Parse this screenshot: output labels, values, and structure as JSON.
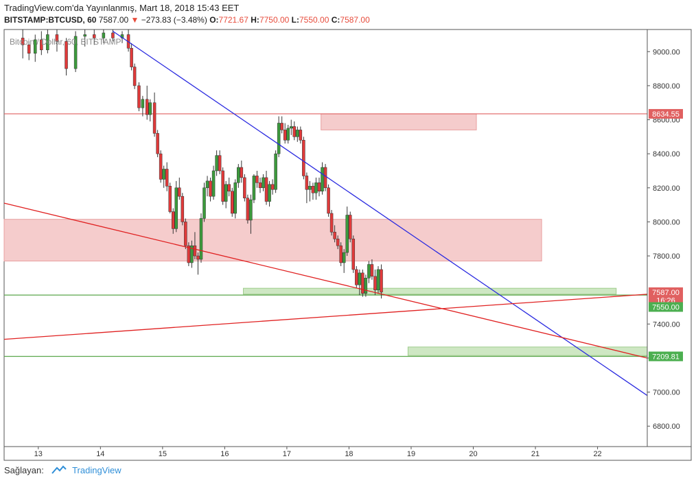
{
  "header": {
    "published": "TradingView.com'da Yayınlanmış, Mart 18, 2018 15:43 EET",
    "symbol": "BITSTAMP:BTCUSD, 60",
    "last": "7587.00",
    "arrow": "▼",
    "change": "−273.83 (−3.48%)",
    "o_label": "O:",
    "o_val": "7721.67",
    "h_label": "H:",
    "h_val": "7750.00",
    "l_label": "L:",
    "l_val": "7550.00",
    "c_label": "C:",
    "c_val": "7587.00"
  },
  "watermark": "Bitcoin / Dollar, 60, BITSTAMP",
  "footer": {
    "label": "Sağlayan:",
    "brand": "TradingView"
  },
  "colors": {
    "up": "#3c9a3c",
    "down": "#e03a3a",
    "zone_red": "#f3c3c3",
    "zone_green": "#c6e3b8",
    "blue_line": "#2a2ae0",
    "red_line": "#e02020",
    "green_line": "#5aa64a"
  },
  "chart_data": {
    "type": "candlestick",
    "title": "Bitcoin / Dollar, 60, BITSTAMP",
    "x_ticks": [
      "13",
      "14",
      "15",
      "16",
      "17",
      "18",
      "19",
      "20",
      "21",
      "22"
    ],
    "y_ticks": [
      "9000.00",
      "8800.00",
      "8600.00",
      "8400.00",
      "8200.00",
      "8000.00",
      "7800.00",
      "7400.00",
      "7200.00",
      "7000.00",
      "6800.00"
    ],
    "ylim": [
      6680,
      9130
    ],
    "xlim": [
      12.45,
      22.8
    ],
    "price_labels": [
      {
        "text": "8634.55",
        "price": 8634.55,
        "color": "#e06060"
      },
      {
        "text": "7587.00",
        "price": 7587,
        "color": "#e06060"
      },
      {
        "text": "16:26",
        "price": 7541,
        "color": "#e06060"
      },
      {
        "text": "7550.00",
        "price": 7500,
        "color": "#4caf50"
      },
      {
        "text": "7209.81",
        "price": 7209.81,
        "color": "#4caf50"
      }
    ],
    "horizontal_lines": [
      {
        "price": 8634.55,
        "color": "#e06060"
      },
      {
        "price": 7570,
        "color": "#5aa64a"
      },
      {
        "price": 7209.81,
        "color": "#5aa64a"
      }
    ],
    "zones": [
      {
        "x1": 17.55,
        "x2": 20.05,
        "p1": 8634.55,
        "p2": 8540,
        "color": "red"
      },
      {
        "x1": 12.45,
        "x2": 21.1,
        "p1": 8015,
        "p2": 7770,
        "color": "red"
      },
      {
        "x1": 16.3,
        "x2": 22.3,
        "p1": 7610,
        "p2": 7575,
        "color": "green"
      },
      {
        "x1": 18.95,
        "x2": 22.8,
        "p1": 7265,
        "p2": 7215,
        "color": "green"
      }
    ],
    "trend_lines": [
      {
        "x1": 14.2,
        "p1": 9120,
        "x2": 22.8,
        "p2": 6980,
        "color": "blue"
      },
      {
        "x1": 12.45,
        "p1": 8110,
        "x2": 22.8,
        "p2": 7200,
        "color": "red"
      },
      {
        "x1": 12.45,
        "p1": 7310,
        "x2": 22.8,
        "p2": 7575,
        "color": "red"
      }
    ],
    "candles": [
      [
        12.75,
        9080,
        9130,
        8960,
        9040
      ],
      [
        12.85,
        9040,
        9060,
        8950,
        8990
      ],
      [
        12.95,
        8990,
        9100,
        8940,
        9070
      ],
      [
        13.05,
        9070,
        9120,
        8980,
        9010
      ],
      [
        13.15,
        9010,
        9130,
        8990,
        9100
      ],
      [
        13.3,
        9100,
        9130,
        9000,
        9060
      ],
      [
        13.45,
        9060,
        9080,
        8860,
        8900
      ],
      [
        13.6,
        8900,
        9120,
        8880,
        9090
      ],
      [
        13.75,
        9090,
        9130,
        9030,
        9100
      ],
      [
        13.9,
        9100,
        9130,
        9040,
        9080
      ],
      [
        14.05,
        9080,
        9130,
        9050,
        9110
      ],
      [
        14.2,
        9110,
        9130,
        9060,
        9080
      ],
      [
        14.35,
        9080,
        9120,
        9050,
        9100
      ],
      [
        14.45,
        9100,
        9130,
        9000,
        9020
      ],
      [
        14.5,
        9020,
        9050,
        8890,
        8910
      ],
      [
        14.55,
        8910,
        8930,
        8780,
        8800
      ],
      [
        14.62,
        8800,
        8820,
        8650,
        8670
      ],
      [
        14.68,
        8670,
        8740,
        8620,
        8720
      ],
      [
        14.75,
        8720,
        8800,
        8600,
        8630
      ],
      [
        14.8,
        8630,
        8720,
        8590,
        8700
      ],
      [
        14.87,
        8700,
        8760,
        8500,
        8520
      ],
      [
        14.92,
        8520,
        8540,
        8380,
        8400
      ],
      [
        14.97,
        8400,
        8420,
        8230,
        8250
      ],
      [
        15.02,
        8250,
        8330,
        8200,
        8310
      ],
      [
        15.07,
        8310,
        8350,
        8180,
        8210
      ],
      [
        15.12,
        8210,
        8230,
        8050,
        8060
      ],
      [
        15.17,
        8060,
        8080,
        7930,
        7960
      ],
      [
        15.22,
        7960,
        8240,
        7940,
        8200
      ],
      [
        15.27,
        8200,
        8260,
        8130,
        8150
      ],
      [
        15.32,
        8150,
        8170,
        7980,
        8000
      ],
      [
        15.37,
        8000,
        8020,
        7840,
        7860
      ],
      [
        15.42,
        7860,
        7880,
        7740,
        7760
      ],
      [
        15.47,
        7760,
        7890,
        7730,
        7860
      ],
      [
        15.52,
        7860,
        7940,
        7780,
        7800
      ],
      [
        15.57,
        7800,
        7820,
        7690,
        7780
      ],
      [
        15.62,
        7780,
        8050,
        7760,
        8020
      ],
      [
        15.67,
        8020,
        8230,
        8000,
        8200
      ],
      [
        15.72,
        8200,
        8270,
        8150,
        8240
      ],
      [
        15.77,
        8240,
        8260,
        8120,
        8150
      ],
      [
        15.82,
        8150,
        8330,
        8130,
        8300
      ],
      [
        15.87,
        8300,
        8420,
        8270,
        8390
      ],
      [
        15.92,
        8390,
        8420,
        8280,
        8300
      ],
      [
        15.97,
        8300,
        8320,
        8100,
        8120
      ],
      [
        16.02,
        8120,
        8240,
        8080,
        8220
      ],
      [
        16.07,
        8220,
        8260,
        8150,
        8180
      ],
      [
        16.12,
        8180,
        8200,
        8030,
        8050
      ],
      [
        16.17,
        8050,
        8250,
        8020,
        8230
      ],
      [
        16.22,
        8230,
        8340,
        8200,
        8320
      ],
      [
        16.27,
        8320,
        8360,
        8230,
        8260
      ],
      [
        16.32,
        8260,
        8280,
        8120,
        8140
      ],
      [
        16.37,
        8140,
        8160,
        7990,
        8010
      ],
      [
        16.42,
        8010,
        8160,
        7930,
        8130
      ],
      [
        16.47,
        8130,
        8280,
        8110,
        8270
      ],
      [
        16.52,
        8270,
        8300,
        8200,
        8230
      ],
      [
        16.57,
        8230,
        8260,
        8170,
        8200
      ],
      [
        16.62,
        8200,
        8280,
        8180,
        8260
      ],
      [
        16.67,
        8260,
        8300,
        8100,
        8120
      ],
      [
        16.72,
        8120,
        8240,
        8090,
        8220
      ],
      [
        16.77,
        8220,
        8250,
        8160,
        8190
      ],
      [
        16.82,
        8190,
        8420,
        8170,
        8400
      ],
      [
        16.87,
        8400,
        8620,
        8380,
        8580
      ],
      [
        16.92,
        8580,
        8620,
        8520,
        8540
      ],
      [
        16.97,
        8540,
        8580,
        8460,
        8480
      ],
      [
        17.02,
        8480,
        8570,
        8460,
        8550
      ],
      [
        17.07,
        8550,
        8600,
        8510,
        8560
      ],
      [
        17.12,
        8560,
        8590,
        8480,
        8500
      ],
      [
        17.17,
        8500,
        8560,
        8470,
        8540
      ],
      [
        17.22,
        8540,
        8560,
        8460,
        8480
      ],
      [
        17.27,
        8480,
        8500,
        8250,
        8270
      ],
      [
        17.32,
        8270,
        8290,
        8110,
        8190
      ],
      [
        17.37,
        8190,
        8240,
        8120,
        8210
      ],
      [
        17.42,
        8210,
        8230,
        8130,
        8170
      ],
      [
        17.47,
        8170,
        8260,
        8130,
        8230
      ],
      [
        17.52,
        8230,
        8260,
        8150,
        8180
      ],
      [
        17.57,
        8180,
        8350,
        8160,
        8320
      ],
      [
        17.62,
        8320,
        8340,
        8180,
        8200
      ],
      [
        17.67,
        8200,
        8220,
        8030,
        8050
      ],
      [
        17.72,
        8050,
        8070,
        7920,
        7940
      ],
      [
        17.77,
        7940,
        7980,
        7880,
        7900
      ],
      [
        17.82,
        7900,
        7920,
        7840,
        7860
      ],
      [
        17.87,
        7860,
        7880,
        7740,
        7760
      ],
      [
        17.92,
        7760,
        7840,
        7700,
        7820
      ],
      [
        17.97,
        7820,
        8090,
        7800,
        8040
      ],
      [
        18.02,
        8040,
        8060,
        7880,
        7900
      ],
      [
        18.07,
        7900,
        7920,
        7700,
        7720
      ],
      [
        18.12,
        7720,
        7740,
        7610,
        7630
      ],
      [
        18.17,
        7630,
        7720,
        7570,
        7700
      ],
      [
        18.22,
        7700,
        7720,
        7560,
        7580
      ],
      [
        18.27,
        7580,
        7690,
        7560,
        7670
      ],
      [
        18.32,
        7670,
        7770,
        7640,
        7750
      ],
      [
        18.37,
        7750,
        7780,
        7660,
        7680
      ],
      [
        18.42,
        7680,
        7720,
        7570,
        7600
      ],
      [
        18.47,
        7600,
        7740,
        7580,
        7720
      ],
      [
        18.52,
        7720,
        7750,
        7550,
        7587
      ]
    ]
  }
}
